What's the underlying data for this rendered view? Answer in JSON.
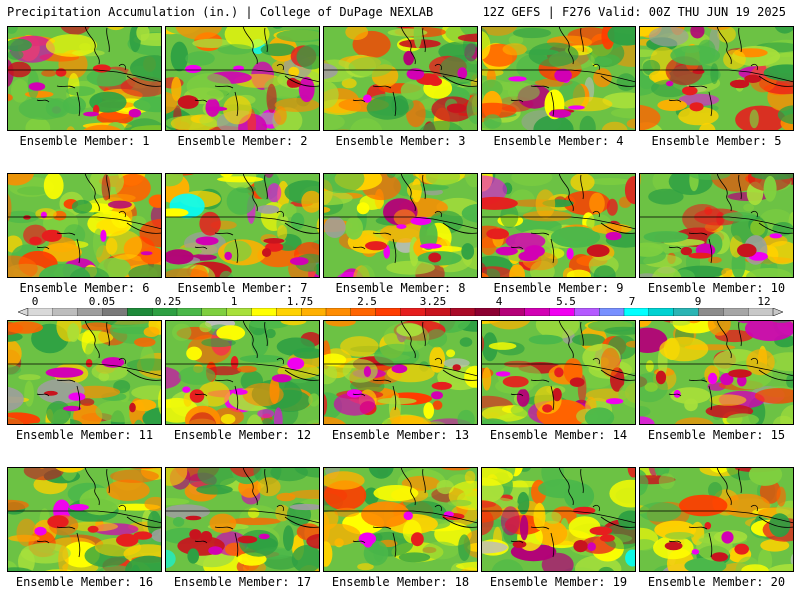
{
  "header": {
    "left_title": "Precipitation Accumulation (in.) | College of DuPage NEXLAB",
    "right_title": "12Z GEFS | F276 Valid: 00Z THU JUN 19 2025"
  },
  "members": [
    {
      "label": "Ensemble Member: 1"
    },
    {
      "label": "Ensemble Member: 2"
    },
    {
      "label": "Ensemble Member: 3"
    },
    {
      "label": "Ensemble Member: 4"
    },
    {
      "label": "Ensemble Member: 5"
    },
    {
      "label": "Ensemble Member: 6"
    },
    {
      "label": "Ensemble Member: 7"
    },
    {
      "label": "Ensemble Member: 8"
    },
    {
      "label": "Ensemble Member: 9"
    },
    {
      "label": "Ensemble Member: 10"
    },
    {
      "label": "Ensemble Member: 11"
    },
    {
      "label": "Ensemble Member: 12"
    },
    {
      "label": "Ensemble Member: 13"
    },
    {
      "label": "Ensemble Member: 14"
    },
    {
      "label": "Ensemble Member: 15"
    },
    {
      "label": "Ensemble Member: 16"
    },
    {
      "label": "Ensemble Member: 17"
    },
    {
      "label": "Ensemble Member: 18"
    },
    {
      "label": "Ensemble Member: 19"
    },
    {
      "label": "Ensemble Member: 20"
    }
  ],
  "colorbar": {
    "ticks": [
      "0",
      "0.05",
      "0.25",
      "1",
      "1.75",
      "2.5",
      "3.25",
      "4",
      "5.5",
      "7",
      "9",
      "12"
    ],
    "colors": [
      "#d9d9d9",
      "#bdbdbd",
      "#9e9e9e",
      "#7a7a7a",
      "#1e8a3a",
      "#2ea043",
      "#4bb84a",
      "#7fcf3f",
      "#a8e03a",
      "#ffff00",
      "#ffd200",
      "#ffb000",
      "#ff8c00",
      "#ff6400",
      "#ff3c00",
      "#e61e1e",
      "#c8141e",
      "#aa0a28",
      "#8c0032",
      "#b40078",
      "#d200b4",
      "#f000f0",
      "#b45aff",
      "#7890ff",
      "#00ffff",
      "#00d2d2",
      "#2ab4b4",
      "#8c8c8c",
      "#a6a6a6",
      "#c8c8c8"
    ]
  }
}
